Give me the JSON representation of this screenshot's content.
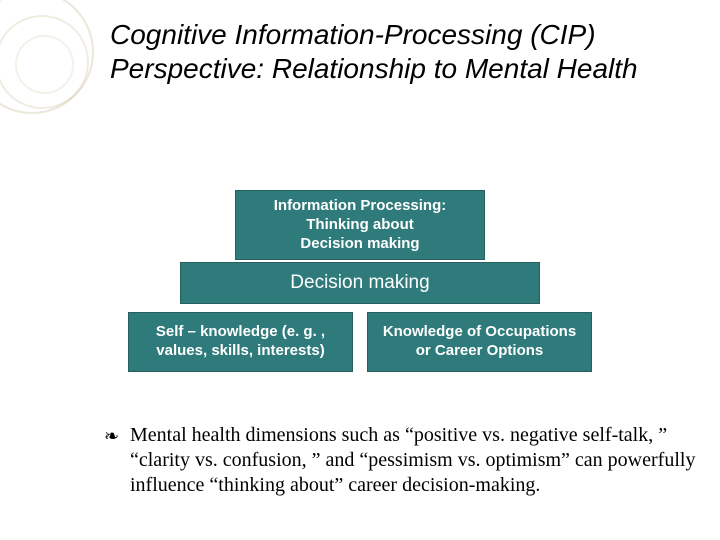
{
  "title": "Cognitive Information-Processing (CIP) Perspective: Relationship to Mental Health",
  "diagram": {
    "top": "Information Processing:\nThinking about\nDecision making",
    "mid": "Decision making",
    "left": "Self – knowledge (e. g. , values, skills, interests)",
    "right": "Knowledge of Occupations or Career Options",
    "block_bg": "#2f7a7a",
    "block_text": "#ffffff"
  },
  "body": "Mental health dimensions such as “positive vs. negative self-talk, ” “clarity vs. confusion, ” and “pessimism vs. optimism” can powerfully influence “thinking about” career decision-making.",
  "bullet_glyph": "❧",
  "colors": {
    "background": "#ffffff",
    "title_color": "#000000",
    "body_color": "#000000",
    "deco_ring": "rgba(180,160,110,0.25)"
  },
  "fonts": {
    "title_family": "Arial",
    "title_size_pt": 21,
    "title_style": "italic",
    "body_family": "Times New Roman",
    "body_size_pt": 15,
    "block_label_size_pt": 11
  }
}
